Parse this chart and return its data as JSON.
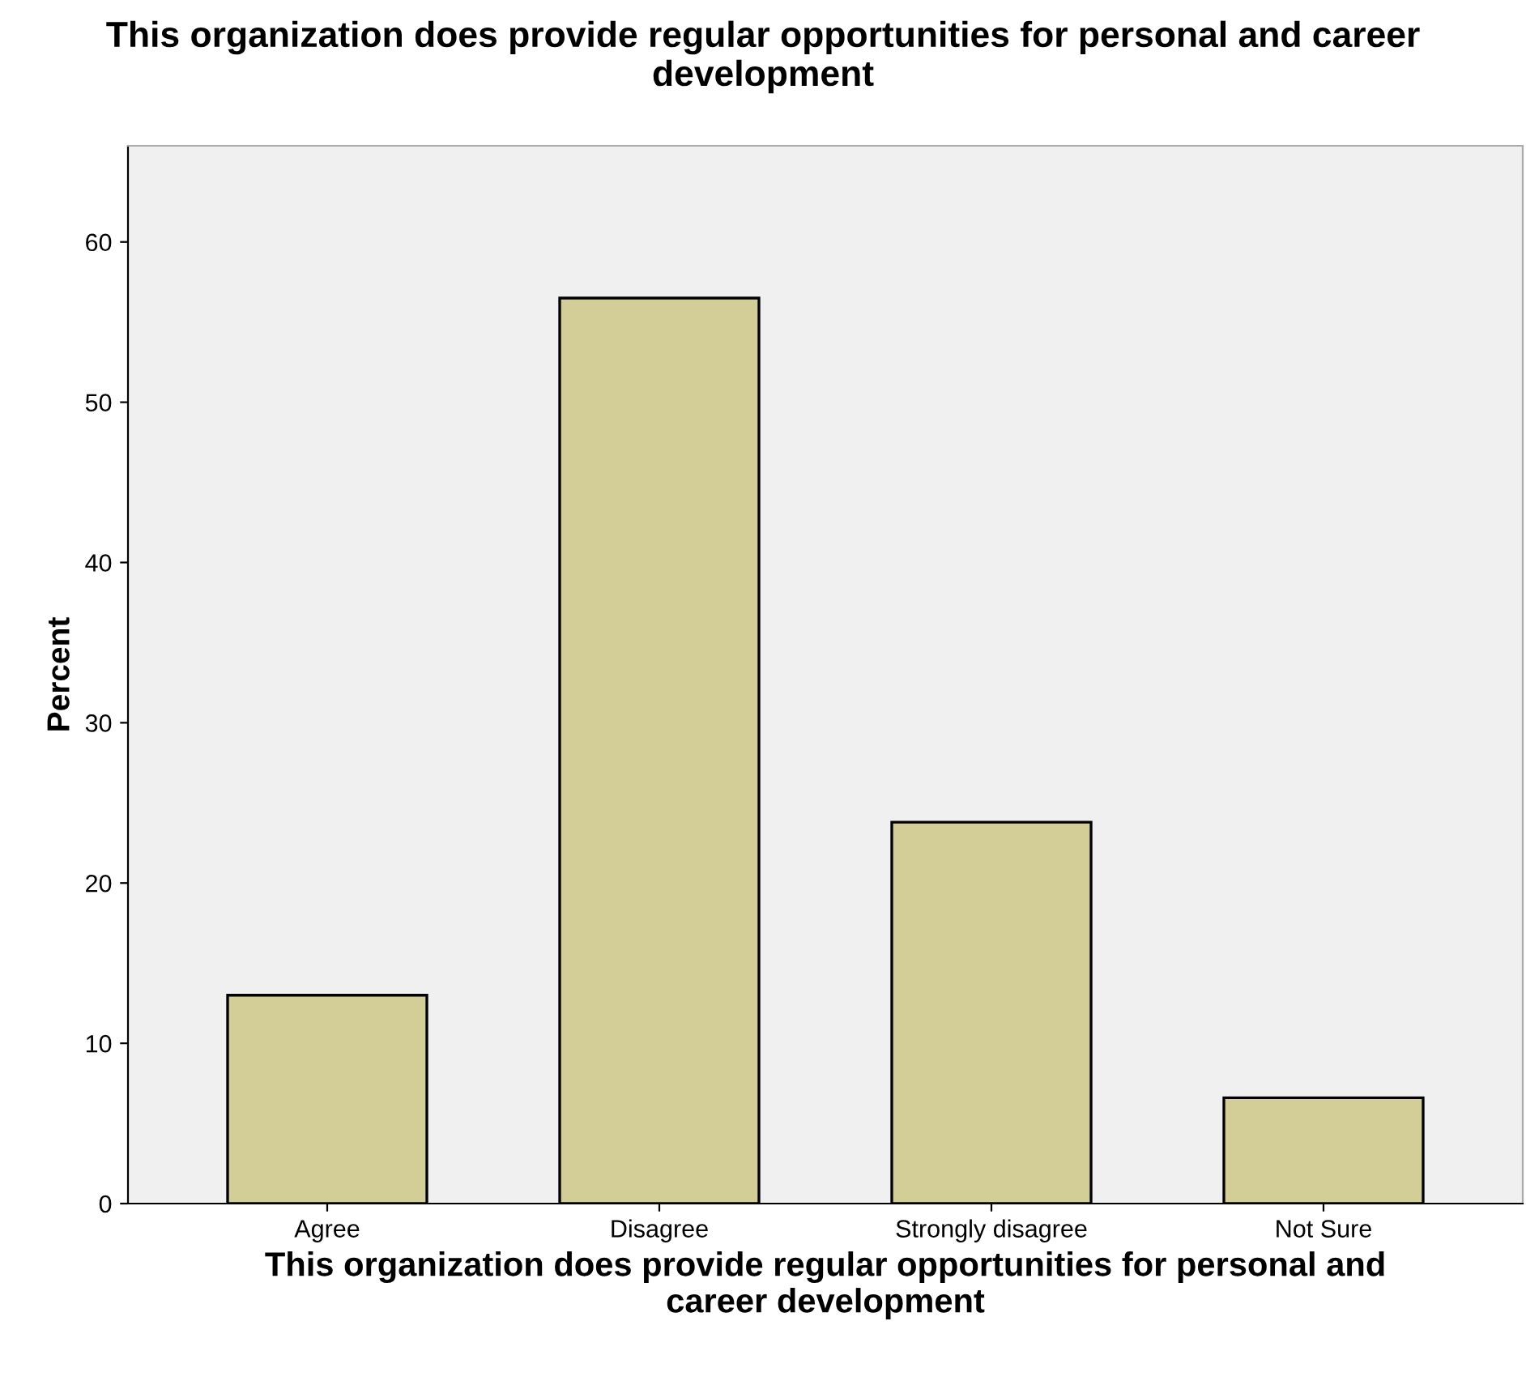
{
  "chart_data": {
    "type": "bar",
    "title": "This organization does provide regular opportunities for personal and career\ndevelopment",
    "xlabel": "This organization does provide regular opportunities for personal and\ncareer development",
    "ylabel": "Percent",
    "categories": [
      "Agree",
      "Disagree",
      "Strongly disagree",
      "Not Sure"
    ],
    "values": [
      13.0,
      56.5,
      23.8,
      6.6
    ],
    "color": "#d3ce97",
    "ylim": [
      0,
      66
    ],
    "yticks": [
      0,
      10,
      20,
      30,
      40,
      50,
      60
    ],
    "grid": false
  }
}
